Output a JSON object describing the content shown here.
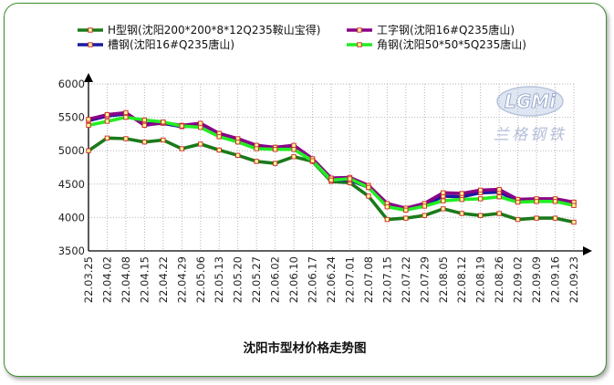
{
  "chart_data": {
    "type": "line",
    "title": "沈阳市型材价格走势图",
    "categories": [
      "22.03.25",
      "22.04.02",
      "22.04.08",
      "22.04.15",
      "22.04.22",
      "22.04.29",
      "22.05.06",
      "22.05.13",
      "22.05.20",
      "22.05.27",
      "22.06.02",
      "22.06.10",
      "22.06.17",
      "22.06.24",
      "22.07.01",
      "22.07.08",
      "22.07.15",
      "22.07.22",
      "22.07.29",
      "22.08.05",
      "22.08.12",
      "22.08.19",
      "22.08.26",
      "22.09.02",
      "22.09.09",
      "22.09.16",
      "22.09.23"
    ],
    "ylim": [
      3500,
      6000
    ],
    "yticks": [
      3500,
      4000,
      4500,
      5000,
      5500,
      6000
    ],
    "grid": true,
    "legend_position": "top",
    "series": [
      {
        "name": "H型钢(沈阳200*200*8*12Q235鞍山宝得)",
        "color": "#1a7a1a",
        "values": [
          5000,
          5190,
          5180,
          5130,
          5160,
          5030,
          5100,
          5010,
          4930,
          4840,
          4810,
          4910,
          4840,
          4540,
          4520,
          4320,
          3970,
          3990,
          4030,
          4130,
          4060,
          4030,
          4060,
          3970,
          3990,
          3990,
          3930
        ]
      },
      {
        "name": "工字钢(沈阳16#Q235唐山)",
        "color": "#880088",
        "values": [
          5470,
          5540,
          5570,
          5380,
          5420,
          5380,
          5410,
          5260,
          5180,
          5080,
          5050,
          5080,
          4880,
          4590,
          4600,
          4480,
          4210,
          4140,
          4210,
          4370,
          4360,
          4410,
          4420,
          4270,
          4280,
          4280,
          4230
        ]
      },
      {
        "name": "槽钢(沈阳16#Q235唐山)",
        "color": "#1a1aa0",
        "values": [
          5450,
          5520,
          5550,
          5400,
          5410,
          5360,
          5380,
          5240,
          5150,
          5050,
          5050,
          5060,
          4870,
          4560,
          4560,
          4450,
          4180,
          4130,
          4180,
          4320,
          4310,
          4370,
          4380,
          4250,
          4250,
          4260,
          4220
        ]
      },
      {
        "name": "角钢(沈阳50*50*5Q235唐山)",
        "color": "#22ee22",
        "values": [
          5380,
          5440,
          5500,
          5460,
          5430,
          5370,
          5350,
          5210,
          5130,
          5030,
          5020,
          5020,
          4850,
          4560,
          4580,
          4450,
          4160,
          4110,
          4170,
          4250,
          4270,
          4280,
          4310,
          4230,
          4240,
          4240,
          4180
        ]
      }
    ]
  },
  "logo": {
    "text": "LGMi",
    "subtitle": "兰格钢铁"
  },
  "colors": {
    "frame": "#3d8f2e",
    "marker_fill": "#ffff99",
    "marker_stroke": "#cc3333"
  }
}
